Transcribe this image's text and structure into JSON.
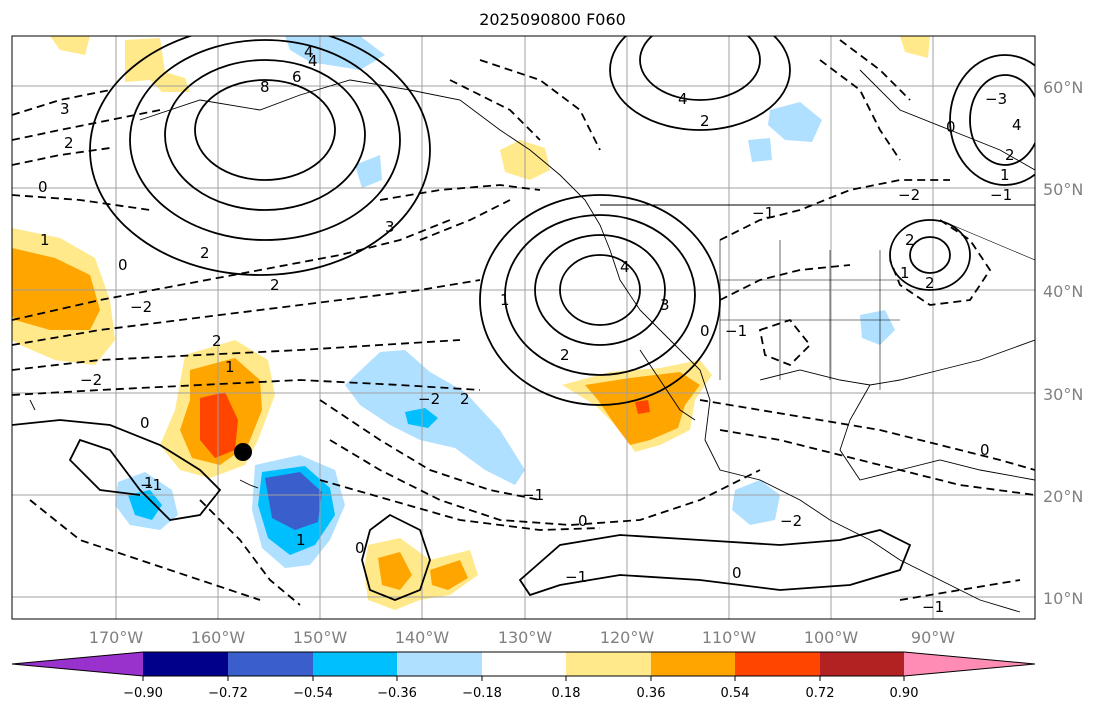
{
  "title": "2025090800 F060",
  "longitude_labels": [
    "170°W",
    "160°W",
    "150°W",
    "140°W",
    "130°W",
    "120°W",
    "110°W",
    "100°W",
    "90°W"
  ],
  "latitude_labels": [
    "60°N",
    "50°N",
    "40°N",
    "30°N",
    "20°N",
    "10°N"
  ],
  "colorbar": {
    "tick_labels": [
      "−0.90",
      "−0.72",
      "−0.54",
      "−0.36",
      "−0.18",
      "0.18",
      "0.36",
      "0.54",
      "0.72",
      "0.90"
    ],
    "colors": [
      "#9932cc",
      "#00008b",
      "#3a5fcd",
      "#00bfff",
      "#b0e0ff",
      "#ffffff",
      "#ffe98a",
      "#ffa500",
      "#ff4500",
      "#b22222",
      "#ff8cb4"
    ]
  },
  "contour_labels": [
    "8",
    "6",
    "4",
    "4",
    "3",
    "2",
    "2",
    "0",
    "0",
    "1",
    "2",
    "−2",
    "−2",
    "0",
    "−1",
    "−2",
    "−1",
    "2",
    "1",
    "3",
    "4",
    "3",
    "2",
    "0",
    "1",
    "2",
    "4",
    "2",
    "1",
    "0",
    "−2",
    "−1",
    "−1",
    "1",
    "0",
    "0",
    "0",
    "−1",
    "−2",
    "−1",
    "−3",
    "2",
    "1",
    "2",
    "0",
    "−1",
    "1",
    "4",
    "2"
  ],
  "marker": {
    "label": "storm-center",
    "lon": -156.5,
    "lat": 24.5
  }
}
